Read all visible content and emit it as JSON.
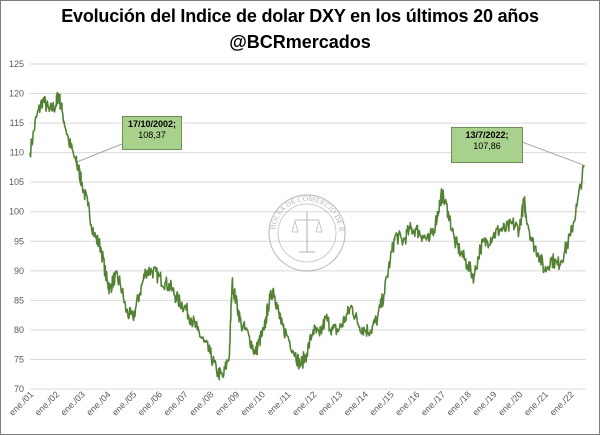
{
  "title": "Evolución del Indice de dolar DXY en los últimos 20 años",
  "subtitle": "@BCRmercados",
  "annotations": [
    {
      "date": "17/10/2002;",
      "value": "108,37"
    },
    {
      "date": "13/7/2022;",
      "value": "107,86"
    }
  ],
  "watermark_text": "BOLSA DE COMERCIO DE ROSARIO",
  "colors": {
    "line": "#548235",
    "callout_fill": "#a9d18e",
    "grid": "#d9d9d9"
  },
  "chart_data": {
    "type": "line",
    "title": "Evolución del Indice de dolar DXY en los últimos 20 años",
    "subtitle": "@BCRmercados",
    "ylim": [
      70,
      125
    ],
    "y_ticks": [
      70,
      75,
      80,
      85,
      90,
      95,
      100,
      105,
      110,
      115,
      120,
      125
    ],
    "x_tick_labels": [
      "ene./01",
      "ene./02",
      "ene./03",
      "ene./04",
      "ene./05",
      "ene./06",
      "ene./07",
      "ene./08",
      "ene./09",
      "ene./10",
      "ene./11",
      "ene./12",
      "ene./13",
      "ene./14",
      "ene./15",
      "ene./16",
      "ene./17",
      "ene./18",
      "ene./19",
      "ene./20",
      "ene./21",
      "ene./22"
    ],
    "grid": "horizontal",
    "series": [
      {
        "x": [
          2001.0,
          2001.25,
          2001.5,
          2001.75,
          2002.0,
          2002.1,
          2002.25,
          2002.5,
          2002.79,
          2002.9,
          2003.0,
          2003.25,
          2003.5,
          2003.75,
          2004.0,
          2004.1,
          2004.3,
          2004.5,
          2004.75,
          2005.0,
          2005.25,
          2005.5,
          2005.75,
          2006.0,
          2006.25,
          2006.5,
          2006.75,
          2007.0,
          2007.25,
          2007.5,
          2007.75,
          2008.0,
          2008.25,
          2008.5,
          2008.75,
          2008.85,
          2009.0,
          2009.2,
          2009.5,
          2009.75,
          2009.9,
          2010.1,
          2010.25,
          2010.45,
          2010.6,
          2010.75,
          2011.0,
          2011.3,
          2011.5,
          2011.75,
          2012.0,
          2012.25,
          2012.5,
          2012.75,
          2013.0,
          2013.25,
          2013.5,
          2013.75,
          2014.0,
          2014.25,
          2014.5,
          2014.75,
          2015.0,
          2015.2,
          2015.5,
          2015.75,
          2016.0,
          2016.25,
          2016.5,
          2016.75,
          2016.95,
          2017.0,
          2017.25,
          2017.5,
          2017.75,
          2018.0,
          2018.25,
          2018.5,
          2018.75,
          2019.0,
          2019.25,
          2019.5,
          2019.75,
          2020.0,
          2020.2,
          2020.25,
          2020.5,
          2020.75,
          2021.0,
          2021.25,
          2021.5,
          2021.75,
          2022.0,
          2022.25,
          2022.53
        ],
        "values": [
          110,
          116,
          119,
          117,
          118,
          120,
          117,
          112,
          108.37,
          107,
          105,
          101,
          96,
          94,
          88,
          87,
          89,
          88,
          83,
          82,
          86,
          90,
          90,
          89,
          88,
          87,
          85,
          84,
          82,
          80,
          78,
          76,
          73,
          72,
          76,
          88,
          85,
          81,
          79,
          76,
          78,
          80,
          84,
          87,
          84,
          81,
          79,
          76,
          74,
          76,
          80,
          79,
          82,
          80,
          80,
          82,
          84,
          81,
          80,
          80,
          82,
          86,
          92,
          96,
          95,
          97,
          97,
          96,
          95,
          98,
          102,
          103,
          100,
          95,
          93,
          91,
          89,
          94,
          95,
          96,
          97,
          97,
          98,
          97,
          102,
          100,
          95,
          93,
          90,
          92,
          91,
          93,
          96,
          101,
          107.86
        ]
      }
    ]
  }
}
